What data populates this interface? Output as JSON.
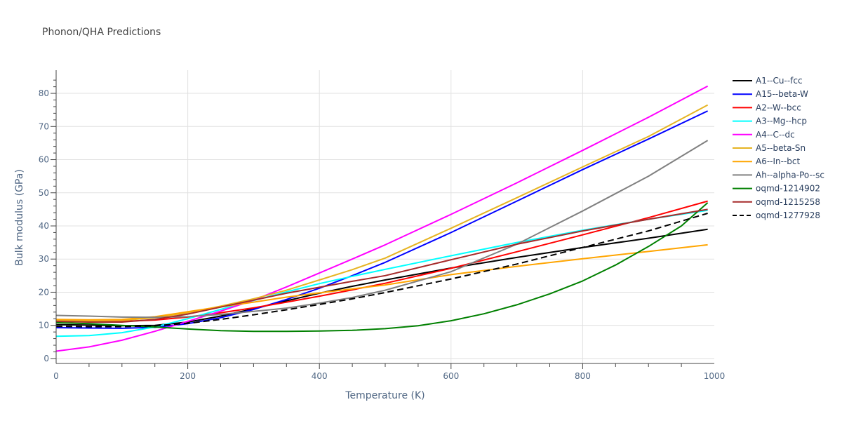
{
  "chart_data": {
    "type": "line",
    "title": "Phonon/QHA Predictions",
    "xlabel": "Temperature (K)",
    "ylabel": "Bulk modulus (GPa)",
    "xlim": [
      0,
      1000
    ],
    "ylim": [
      -1.5,
      87
    ],
    "x_ticks": [
      0,
      200,
      400,
      600,
      800,
      1000
    ],
    "y_ticks": [
      0,
      10,
      20,
      30,
      40,
      50,
      60,
      70,
      80
    ],
    "grid": true,
    "legend_position": "right",
    "series": [
      {
        "name": "A1--Cu--fcc",
        "color": "#000000",
        "dash": "solid",
        "x": [
          0,
          50,
          100,
          150,
          200,
          250,
          300,
          350,
          400,
          450,
          500,
          600,
          700,
          800,
          900,
          990
        ],
        "y": [
          10.2,
          10.1,
          9.9,
          10.0,
          11.0,
          12.8,
          15.0,
          17.4,
          19.7,
          21.8,
          23.7,
          27.3,
          30.5,
          33.5,
          36.3,
          39.0
        ]
      },
      {
        "name": "A15--beta-W",
        "color": "#0000ff",
        "dash": "solid",
        "x": [
          0,
          50,
          100,
          150,
          200,
          250,
          300,
          350,
          400,
          450,
          500,
          600,
          700,
          800,
          900,
          990
        ],
        "y": [
          9.3,
          9.2,
          9.1,
          9.4,
          10.5,
          12.3,
          14.8,
          17.8,
          21.2,
          25.0,
          29.0,
          38.0,
          47.5,
          57.0,
          66.2,
          74.7
        ]
      },
      {
        "name": "A2--W--bcc",
        "color": "#ff0000",
        "dash": "solid",
        "x": [
          0,
          50,
          100,
          150,
          200,
          250,
          300,
          350,
          400,
          450,
          500,
          600,
          700,
          800,
          900,
          990
        ],
        "y": [
          11.5,
          11.3,
          11.2,
          11.6,
          12.5,
          13.8,
          15.3,
          17.0,
          18.8,
          20.7,
          22.7,
          27.2,
          32.2,
          37.3,
          42.5,
          47.5
        ]
      },
      {
        "name": "A3--Mg--hcp",
        "color": "#00ffff",
        "dash": "solid",
        "x": [
          0,
          50,
          100,
          150,
          200,
          250,
          300,
          350,
          400,
          450,
          500,
          600,
          700,
          800,
          900,
          990
        ],
        "y": [
          6.7,
          6.9,
          7.8,
          9.5,
          12.0,
          14.8,
          17.5,
          20.1,
          22.6,
          24.8,
          26.9,
          31.0,
          35.0,
          38.7,
          42.0,
          44.7
        ]
      },
      {
        "name": "A4--C--dc",
        "color": "#ff00ff",
        "dash": "solid",
        "x": [
          0,
          50,
          100,
          150,
          200,
          250,
          300,
          350,
          400,
          450,
          500,
          600,
          700,
          800,
          900,
          990
        ],
        "y": [
          2.2,
          3.5,
          5.5,
          8.2,
          11.2,
          14.3,
          17.6,
          21.6,
          25.8,
          30.0,
          34.3,
          43.5,
          53.0,
          62.8,
          72.8,
          82.2
        ]
      },
      {
        "name": "A5--beta-Sn",
        "color": "#e6b422",
        "dash": "solid",
        "x": [
          0,
          50,
          100,
          150,
          200,
          250,
          300,
          350,
          400,
          450,
          500,
          600,
          700,
          800,
          900,
          990
        ],
        "y": [
          11.5,
          11.4,
          11.5,
          12.3,
          13.8,
          15.8,
          18.0,
          20.6,
          23.7,
          26.8,
          30.3,
          39.3,
          48.5,
          57.8,
          67.0,
          76.5
        ]
      },
      {
        "name": "A6--In--bct",
        "color": "#ffa500",
        "dash": "solid",
        "x": [
          0,
          50,
          100,
          150,
          200,
          250,
          300,
          350,
          400,
          450,
          500,
          600,
          700,
          800,
          900,
          990
        ],
        "y": [
          11.8,
          11.7,
          11.8,
          12.6,
          14.1,
          15.6,
          17.0,
          18.5,
          19.8,
          21.0,
          22.2,
          25.3,
          27.8,
          30.1,
          32.3,
          34.3
        ]
      },
      {
        "name": "Ah--alpha-Po--sc",
        "color": "#808080",
        "dash": "solid",
        "x": [
          0,
          50,
          100,
          150,
          200,
          250,
          300,
          350,
          400,
          450,
          500,
          600,
          700,
          800,
          900,
          990
        ],
        "y": [
          13.0,
          12.8,
          12.5,
          12.4,
          12.6,
          13.3,
          14.2,
          15.2,
          16.7,
          18.4,
          20.6,
          26.2,
          34.5,
          44.5,
          55.0,
          65.8
        ]
      },
      {
        "name": "oqmd-1214902",
        "color": "#008000",
        "dash": "solid",
        "x": [
          0,
          50,
          100,
          150,
          200,
          250,
          300,
          350,
          400,
          450,
          500,
          550,
          600,
          650,
          700,
          750,
          800,
          850,
          900,
          950,
          990
        ],
        "y": [
          10.8,
          10.5,
          10.0,
          9.5,
          8.9,
          8.4,
          8.2,
          8.2,
          8.3,
          8.5,
          9.0,
          9.9,
          11.4,
          13.5,
          16.2,
          19.5,
          23.4,
          28.2,
          33.8,
          40.0,
          47.0
        ]
      },
      {
        "name": "oqmd-1215258",
        "color": "#a52a2a",
        "dash": "solid",
        "x": [
          0,
          50,
          100,
          150,
          200,
          250,
          300,
          350,
          400,
          450,
          500,
          600,
          700,
          800,
          900,
          990
        ],
        "y": [
          11.2,
          11.0,
          11.0,
          11.8,
          13.4,
          15.5,
          17.6,
          19.7,
          21.5,
          23.3,
          25.0,
          29.8,
          34.5,
          38.5,
          42.0,
          45.0
        ]
      },
      {
        "name": "oqmd-1277928",
        "color": "#000000",
        "dash": "dash",
        "x": [
          0,
          50,
          100,
          150,
          200,
          250,
          300,
          350,
          400,
          450,
          500,
          600,
          700,
          800,
          900,
          990
        ],
        "y": [
          9.7,
          9.6,
          9.6,
          9.9,
          10.6,
          11.8,
          13.2,
          14.7,
          16.3,
          18.0,
          19.9,
          24.0,
          28.5,
          33.5,
          38.5,
          43.8
        ]
      }
    ]
  }
}
